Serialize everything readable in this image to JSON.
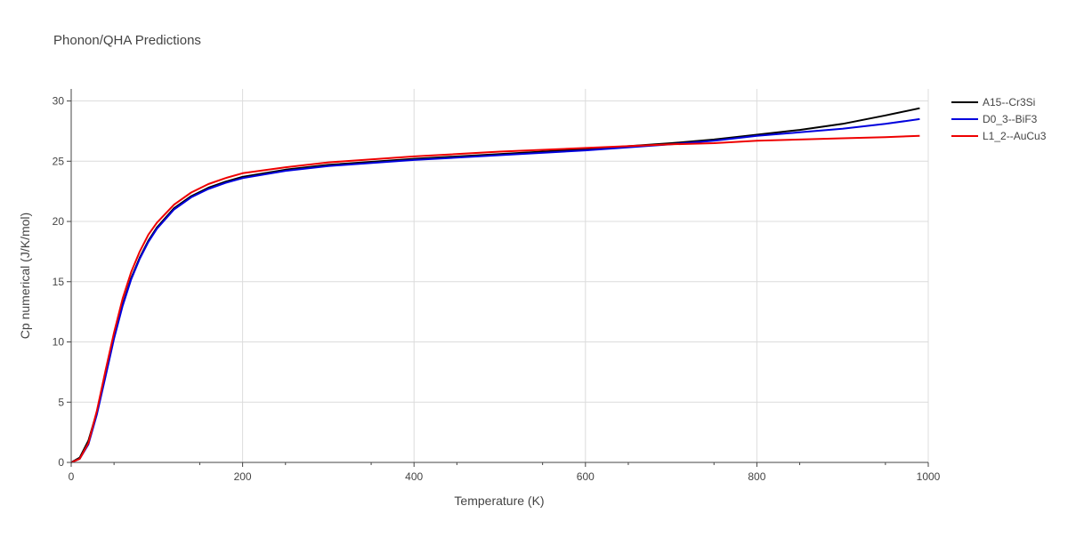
{
  "chart_data": {
    "type": "line",
    "title": "Phonon/QHA Predictions",
    "xlabel": "Temperature (K)",
    "ylabel": "Cp numerical (J/K/mol)",
    "xlim": [
      0,
      1000
    ],
    "ylim": [
      0,
      31
    ],
    "x_ticks": [
      0,
      200,
      400,
      600,
      800,
      1000
    ],
    "y_ticks": [
      0,
      5,
      10,
      15,
      20,
      25,
      30
    ],
    "grid": true,
    "legend_position": "top-right",
    "series": [
      {
        "name": "A15--Cr3Si",
        "color": "#000000",
        "x": [
          0,
          10,
          20,
          30,
          40,
          50,
          60,
          70,
          80,
          90,
          100,
          120,
          140,
          160,
          180,
          200,
          250,
          300,
          400,
          500,
          600,
          700,
          750,
          800,
          850,
          900,
          950,
          990
        ],
        "y": [
          0,
          0.4,
          1.8,
          4.2,
          7.3,
          10.4,
          13.1,
          15.3,
          17.0,
          18.4,
          19.5,
          21.1,
          22.1,
          22.8,
          23.3,
          23.7,
          24.3,
          24.7,
          25.2,
          25.6,
          26.0,
          26.5,
          26.8,
          27.2,
          27.6,
          28.1,
          28.8,
          29.4
        ]
      },
      {
        "name": "D0_3--BiF3",
        "color": "#0000dd",
        "x": [
          0,
          10,
          20,
          30,
          40,
          50,
          60,
          70,
          80,
          90,
          100,
          120,
          140,
          160,
          180,
          200,
          250,
          300,
          400,
          500,
          600,
          700,
          750,
          800,
          850,
          900,
          950,
          990
        ],
        "y": [
          0,
          0.3,
          1.5,
          4.0,
          7.1,
          10.3,
          13.0,
          15.2,
          16.9,
          18.3,
          19.4,
          21.0,
          22.0,
          22.7,
          23.2,
          23.6,
          24.2,
          24.6,
          25.1,
          25.5,
          25.9,
          26.4,
          26.7,
          27.1,
          27.4,
          27.7,
          28.1,
          28.5
        ]
      },
      {
        "name": "L1_2--AuCu3",
        "color": "#ee0000",
        "x": [
          0,
          10,
          20,
          30,
          40,
          50,
          60,
          70,
          80,
          90,
          100,
          120,
          140,
          160,
          180,
          200,
          250,
          300,
          400,
          500,
          600,
          700,
          750,
          800,
          850,
          900,
          950,
          990
        ],
        "y": [
          0,
          0.3,
          1.6,
          4.3,
          7.6,
          10.8,
          13.6,
          15.8,
          17.5,
          18.9,
          19.9,
          21.4,
          22.4,
          23.1,
          23.6,
          24.0,
          24.5,
          24.9,
          25.4,
          25.8,
          26.1,
          26.4,
          26.5,
          26.7,
          26.8,
          26.9,
          27.0,
          27.1
        ]
      }
    ]
  }
}
